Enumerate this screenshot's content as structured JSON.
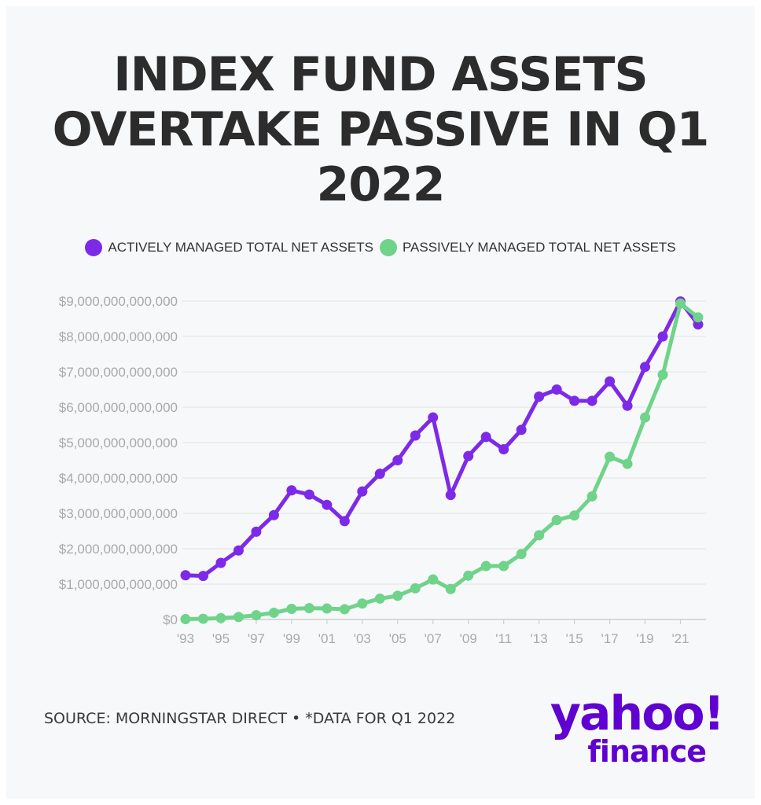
{
  "title_lines": [
    "INDEX FUND ASSETS",
    "OVERTAKE PASSIVE IN Q1",
    "2022"
  ],
  "legend": {
    "active": {
      "label": "ACTIVELY MANAGED TOTAL NET ASSETS",
      "color": "#7d2ae8"
    },
    "passive": {
      "label": "PASSIVELY MANAGED TOTAL NET ASSETS",
      "color": "#6fd38a"
    }
  },
  "source": "SOURCE: MORNINGSTAR DIRECT • *DATA FOR Q1 2022",
  "logo": {
    "line1": "yahoo!",
    "line2": "finance",
    "color": "#5f01d1"
  },
  "chart_data": {
    "type": "line",
    "title": "INDEX FUND ASSETS OVERTAKE PASSIVE IN Q1 2022",
    "x": [
      1993,
      1994,
      1995,
      1996,
      1997,
      1998,
      1999,
      2000,
      2001,
      2002,
      2003,
      2004,
      2005,
      2006,
      2007,
      2008,
      2009,
      2010,
      2011,
      2012,
      2013,
      2014,
      2015,
      2016,
      2017,
      2018,
      2019,
      2020,
      2021,
      2022
    ],
    "x_tick_labels": [
      "'93",
      "'95",
      "'97",
      "'99",
      "'01",
      "'03",
      "'05",
      "'07",
      "'09",
      "'11",
      "'13",
      "'15",
      "'17",
      "'19",
      "'21"
    ],
    "y_tick_labels": [
      "$0",
      "$1,000,000,000,000",
      "$2,000,000,000,000",
      "$3,000,000,000,000",
      "$4,000,000,000,000",
      "$5,000,000,000,000",
      "$6,000,000,000,000",
      "$7,000,000,000,000",
      "$8,000,000,000,000",
      "$9,000,000,000,000"
    ],
    "y_tick_values": [
      0,
      1000000000000,
      2000000000000,
      3000000000000,
      4000000000000,
      5000000000000,
      6000000000000,
      7000000000000,
      8000000000000,
      9000000000000
    ],
    "ylim": [
      0,
      9000000000000
    ],
    "grid": true,
    "legend_position": "top",
    "series": [
      {
        "name": "ACTIVELY MANAGED TOTAL NET ASSETS",
        "color": "#7d2ae8",
        "values": [
          1250000000000,
          1230000000000,
          1600000000000,
          1950000000000,
          2480000000000,
          2950000000000,
          3650000000000,
          3530000000000,
          3240000000000,
          2780000000000,
          3620000000000,
          4120000000000,
          4500000000000,
          5200000000000,
          5710000000000,
          3520000000000,
          4620000000000,
          5160000000000,
          4810000000000,
          5360000000000,
          6300000000000,
          6500000000000,
          6180000000000,
          6180000000000,
          6730000000000,
          6040000000000,
          7140000000000,
          8000000000000,
          8990000000000,
          8340000000000
        ]
      },
      {
        "name": "PASSIVELY MANAGED TOTAL NET ASSETS",
        "color": "#6fd38a",
        "values": [
          10000000000,
          20000000000,
          40000000000,
          70000000000,
          120000000000,
          190000000000,
          300000000000,
          320000000000,
          310000000000,
          290000000000,
          450000000000,
          590000000000,
          670000000000,
          880000000000,
          1130000000000,
          860000000000,
          1240000000000,
          1510000000000,
          1510000000000,
          1850000000000,
          2380000000000,
          2810000000000,
          2940000000000,
          3480000000000,
          4600000000000,
          4400000000000,
          5710000000000,
          6920000000000,
          8930000000000,
          8540000000000
        ]
      }
    ]
  }
}
